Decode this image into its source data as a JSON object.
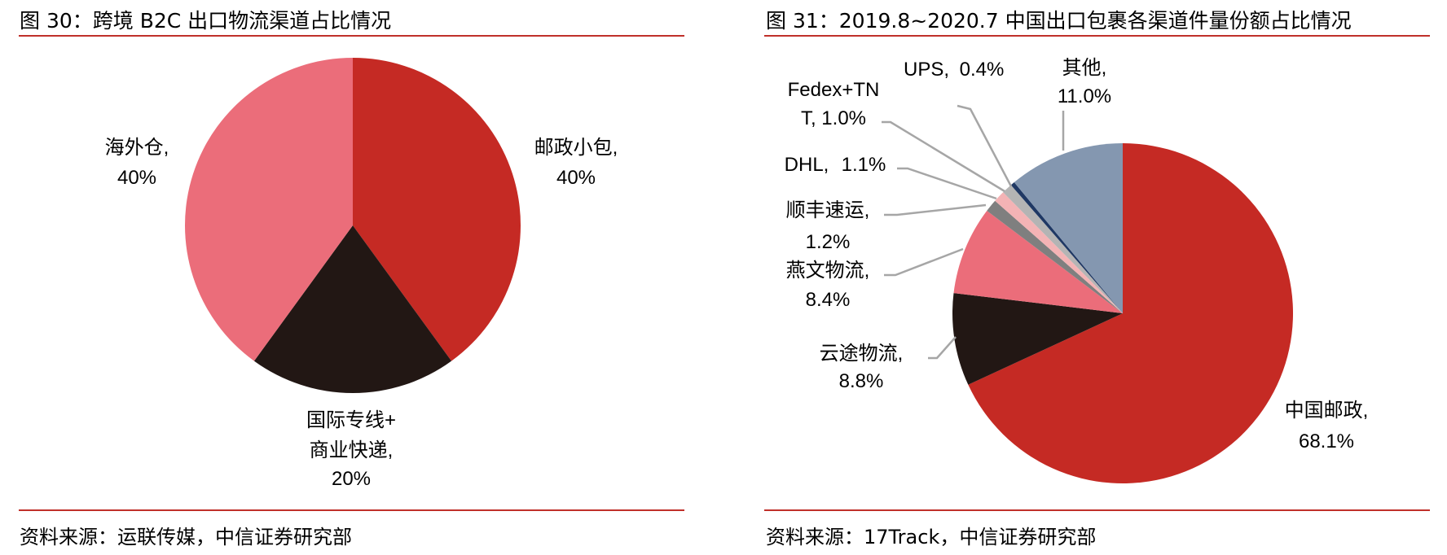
{
  "chart_data": [
    {
      "type": "pie",
      "title": "图 30：跨境 B2C 出口物流渠道占比情况",
      "source": "资料来源：运联传媒，中信证券研究部",
      "slices": [
        {
          "name": "邮政小包,",
          "value": 40,
          "label": "40%",
          "color": "#c52a24"
        },
        {
          "name": "国际专线+商业快递,",
          "name_lines": [
            "国际专线+",
            "商业快递,"
          ],
          "value": 20,
          "label": "20%",
          "color": "#221714"
        },
        {
          "name": "海外仓,",
          "value": 40,
          "label": "40%",
          "color": "#eb6d7a"
        }
      ]
    },
    {
      "type": "pie",
      "title": "图 31：2019.8~2020.7 中国出口包裹各渠道件量份额占比情况",
      "source": "资料来源：17Track，中信证券研究部",
      "slices": [
        {
          "name": "中国邮政,",
          "value": 68.1,
          "label": "68.1%",
          "color": "#c52a24"
        },
        {
          "name": "云途物流,",
          "value": 8.8,
          "label": "8.8%",
          "color": "#221714"
        },
        {
          "name": "燕文物流,",
          "value": 8.4,
          "label": "8.4%",
          "color": "#eb6d7a"
        },
        {
          "name": "顺丰速运,",
          "value": 1.2,
          "label": "1.2%",
          "color": "#7f7f7f"
        },
        {
          "name": "DHL,",
          "value": 1.1,
          "label": "1.1%",
          "color": "#f4b3b5"
        },
        {
          "name": "Fedex+TNT,",
          "name_lines": [
            "Fedex+TN",
            "T, 1.0%"
          ],
          "value": 1.0,
          "label": "1.0%",
          "color": "#b4b4b4"
        },
        {
          "name": "UPS,",
          "value": 0.4,
          "label": "0.4%",
          "color": "#1f3864"
        },
        {
          "name": "其他,",
          "value": 11.0,
          "label": "11.0%",
          "color": "#8497b0"
        }
      ]
    }
  ]
}
